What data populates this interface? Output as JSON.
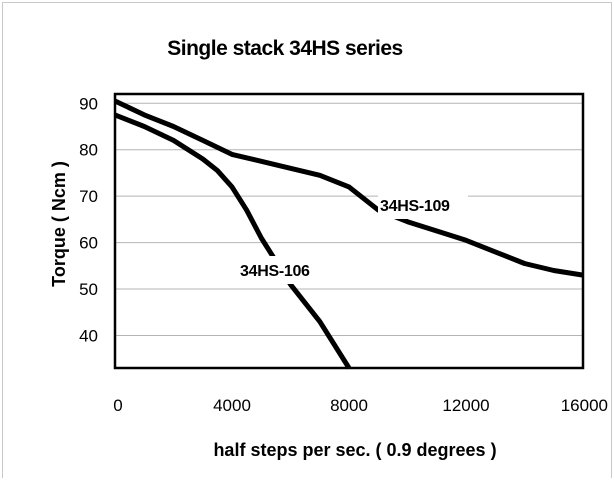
{
  "chart_data": {
    "type": "line",
    "title": "Single stack 34HS series",
    "xlabel": "half steps per sec. ( 0.9 degrees )",
    "ylabel": "Torque ( Ncm )",
    "xlim": [
      0,
      16000
    ],
    "ylim": [
      33,
      92
    ],
    "x_ticks": [
      "0",
      "4000",
      "8000",
      "12000",
      "16000"
    ],
    "y_ticks": [
      "40",
      "50",
      "60",
      "70",
      "80",
      "90"
    ],
    "grid": "horizontal",
    "legend": "none",
    "series": [
      {
        "name": "34HS-109",
        "color": "#000000",
        "points": [
          [
            0,
            90.5
          ],
          [
            1000,
            87.5
          ],
          [
            2000,
            85
          ],
          [
            3000,
            82
          ],
          [
            4000,
            79
          ],
          [
            5000,
            77.5
          ],
          [
            6000,
            76
          ],
          [
            7000,
            74.5
          ],
          [
            8000,
            72
          ],
          [
            9000,
            67
          ],
          [
            10000,
            64.5
          ],
          [
            11000,
            62.5
          ],
          [
            12000,
            60.5
          ],
          [
            13000,
            58
          ],
          [
            14000,
            55.5
          ],
          [
            15000,
            54
          ],
          [
            16000,
            53
          ]
        ]
      },
      {
        "name": "34HS-106",
        "color": "#000000",
        "points": [
          [
            0,
            87.5
          ],
          [
            1000,
            85
          ],
          [
            2000,
            82
          ],
          [
            3000,
            78
          ],
          [
            3500,
            75.5
          ],
          [
            4000,
            72
          ],
          [
            4500,
            67
          ],
          [
            5000,
            61
          ],
          [
            5500,
            56
          ],
          [
            6000,
            51
          ],
          [
            7000,
            43
          ],
          [
            8000,
            33
          ]
        ]
      }
    ]
  }
}
